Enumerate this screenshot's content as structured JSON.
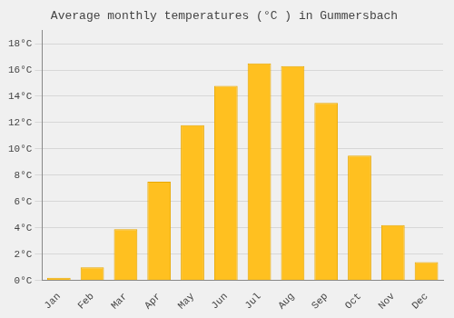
{
  "chart_data": {
    "type": "bar",
    "title": "Average monthly temperatures (°C ) in Gummersbach",
    "categories": [
      "Jan",
      "Feb",
      "Mar",
      "Apr",
      "May",
      "Jun",
      "Jul",
      "Aug",
      "Sep",
      "Oct",
      "Nov",
      "Dec"
    ],
    "values": [
      0.2,
      1.0,
      3.9,
      7.5,
      11.8,
      14.8,
      16.5,
      16.3,
      13.5,
      9.5,
      4.2,
      1.4
    ],
    "color": "#FFC020",
    "ylim": [
      0,
      19
    ],
    "yticks": [
      {
        "value": 0,
        "label": "0°C"
      },
      {
        "value": 2,
        "label": "2°C"
      },
      {
        "value": 4,
        "label": "4°C"
      },
      {
        "value": 6,
        "label": "6°C"
      },
      {
        "value": 8,
        "label": "8°C"
      },
      {
        "value": 10,
        "label": "10°C"
      },
      {
        "value": 12,
        "label": "12°C"
      },
      {
        "value": 14,
        "label": "14°C"
      },
      {
        "value": 16,
        "label": "16°C"
      },
      {
        "value": 18,
        "label": "18°C"
      }
    ],
    "grid": true
  }
}
